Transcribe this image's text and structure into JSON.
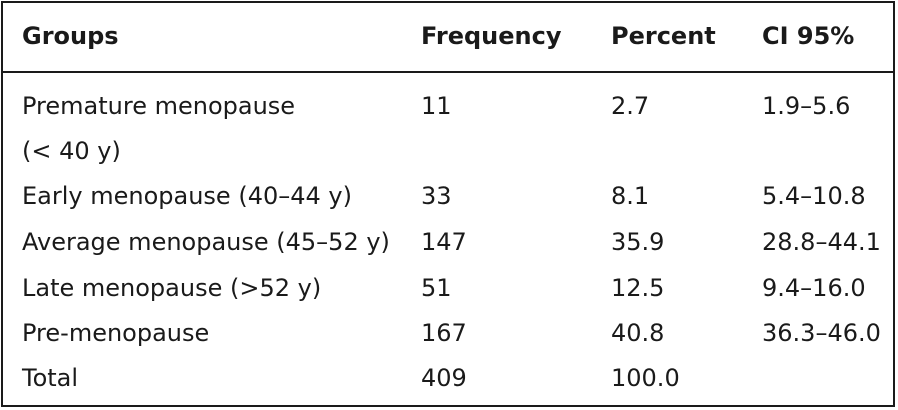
{
  "table": {
    "headers": [
      "Groups",
      "Frequency",
      "Percent",
      "CI 95%"
    ],
    "rows": [
      {
        "group_line1": "Premature menopause",
        "group_line2": "(< 40 y)",
        "frequency": "11",
        "percent": "2.7",
        "ci": "1.9–5.6"
      },
      {
        "group_line1": "Early menopause (40–44 y)",
        "group_line2": "",
        "frequency": "33",
        "percent": "8.1",
        "ci": "5.4–10.8"
      },
      {
        "group_line1": "Average menopause (45–52 y)",
        "group_line2": "",
        "frequency": "147",
        "percent": "35.9",
        "ci": "28.8–44.1"
      },
      {
        "group_line1": "Late menopause (>52 y)",
        "group_line2": "",
        "frequency": "51",
        "percent": "12.5",
        "ci": "9.4–16.0"
      },
      {
        "group_line1": "Pre-menopause",
        "group_line2": "",
        "frequency": "167",
        "percent": "40.8",
        "ci": "36.3–46.0"
      },
      {
        "group_line1": "Total",
        "group_line2": "",
        "frequency": "409",
        "percent": "100.0",
        "ci": ""
      }
    ]
  }
}
